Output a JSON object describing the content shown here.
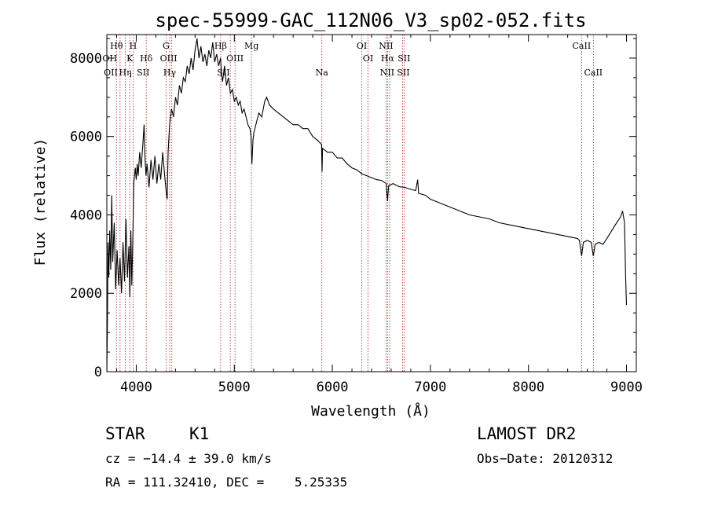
{
  "chart_data": {
    "type": "line",
    "title": "spec-55999-GAC_112N06_V3_sp02-052.fits",
    "xlabel": "Wavelength (Å)",
    "ylabel": "Flux (relative)",
    "xlim": [
      3700,
      9100
    ],
    "ylim": [
      0,
      8600
    ],
    "xticks": [
      4000,
      5000,
      6000,
      7000,
      8000,
      9000
    ],
    "yticks": [
      0,
      2000,
      4000,
      6000,
      8000
    ],
    "series": [
      {
        "color": "#000000",
        "points": [
          [
            3700,
            0
          ],
          [
            3705,
            1000
          ],
          [
            3712,
            3300
          ],
          [
            3720,
            2400
          ],
          [
            3730,
            3600
          ],
          [
            3740,
            2600
          ],
          [
            3750,
            4500
          ],
          [
            3760,
            2800
          ],
          [
            3775,
            3800
          ],
          [
            3790,
            2100
          ],
          [
            3805,
            3100
          ],
          [
            3820,
            2200
          ],
          [
            3835,
            2900
          ],
          [
            3850,
            2000
          ],
          [
            3865,
            3300
          ],
          [
            3880,
            2300
          ],
          [
            3895,
            3900
          ],
          [
            3910,
            2400
          ],
          [
            3925,
            3200
          ],
          [
            3935,
            1900
          ],
          [
            3945,
            3600
          ],
          [
            3955,
            2200
          ],
          [
            3965,
            3400
          ],
          [
            3975,
            4800
          ],
          [
            3990,
            5200
          ],
          [
            4000,
            4900
          ],
          [
            4010,
            5300
          ],
          [
            4020,
            5000
          ],
          [
            4035,
            5600
          ],
          [
            4050,
            5200
          ],
          [
            4070,
            5900
          ],
          [
            4080,
            6300
          ],
          [
            4090,
            5400
          ],
          [
            4100,
            5000
          ],
          [
            4110,
            5300
          ],
          [
            4130,
            4700
          ],
          [
            4150,
            5400
          ],
          [
            4170,
            4900
          ],
          [
            4190,
            5500
          ],
          [
            4210,
            4800
          ],
          [
            4230,
            5300
          ],
          [
            4250,
            4900
          ],
          [
            4270,
            5600
          ],
          [
            4290,
            5000
          ],
          [
            4305,
            4600
          ],
          [
            4315,
            4400
          ],
          [
            4325,
            5600
          ],
          [
            4340,
            6300
          ],
          [
            4360,
            6700
          ],
          [
            4380,
            6500
          ],
          [
            4400,
            7000
          ],
          [
            4420,
            6800
          ],
          [
            4440,
            7300
          ],
          [
            4460,
            7100
          ],
          [
            4480,
            7500
          ],
          [
            4500,
            7400
          ],
          [
            4520,
            7800
          ],
          [
            4540,
            7600
          ],
          [
            4560,
            8000
          ],
          [
            4580,
            7700
          ],
          [
            4600,
            8200
          ],
          [
            4620,
            8500
          ],
          [
            4640,
            8000
          ],
          [
            4660,
            8300
          ],
          [
            4680,
            7900
          ],
          [
            4700,
            8100
          ],
          [
            4720,
            7800
          ],
          [
            4740,
            8200
          ],
          [
            4760,
            8000
          ],
          [
            4780,
            8400
          ],
          [
            4800,
            7900
          ],
          [
            4820,
            8100
          ],
          [
            4840,
            7800
          ],
          [
            4860,
            8000
          ],
          [
            4870,
            7600
          ],
          [
            4880,
            7400
          ],
          [
            4900,
            7800
          ],
          [
            4920,
            7300
          ],
          [
            4940,
            7500
          ],
          [
            4960,
            7100
          ],
          [
            4980,
            7200
          ],
          [
            5000,
            6900
          ],
          [
            5020,
            7000
          ],
          [
            5040,
            6800
          ],
          [
            5060,
            6900
          ],
          [
            5080,
            6600
          ],
          [
            5100,
            6700
          ],
          [
            5120,
            6500
          ],
          [
            5140,
            6300
          ],
          [
            5160,
            6200
          ],
          [
            5170,
            6000
          ],
          [
            5180,
            5300
          ],
          [
            5190,
            5900
          ],
          [
            5200,
            6100
          ],
          [
            5220,
            6300
          ],
          [
            5250,
            6600
          ],
          [
            5280,
            6500
          ],
          [
            5310,
            6900
          ],
          [
            5330,
            7000
          ],
          [
            5360,
            6800
          ],
          [
            5400,
            6700
          ],
          [
            5450,
            6600
          ],
          [
            5500,
            6500
          ],
          [
            5550,
            6400
          ],
          [
            5600,
            6300
          ],
          [
            5650,
            6300
          ],
          [
            5700,
            6200
          ],
          [
            5750,
            6200
          ],
          [
            5800,
            6000
          ],
          [
            5850,
            5900
          ],
          [
            5890,
            5800
          ],
          [
            5895,
            5100
          ],
          [
            5900,
            5700
          ],
          [
            5950,
            5600
          ],
          [
            6000,
            5600
          ],
          [
            6050,
            5450
          ],
          [
            6100,
            5450
          ],
          [
            6150,
            5300
          ],
          [
            6200,
            5200
          ],
          [
            6250,
            5150
          ],
          [
            6300,
            5050
          ],
          [
            6350,
            5000
          ],
          [
            6400,
            4950
          ],
          [
            6450,
            4900
          ],
          [
            6500,
            4880
          ],
          [
            6550,
            4800
          ],
          [
            6563,
            4350
          ],
          [
            6575,
            4750
          ],
          [
            6620,
            4800
          ],
          [
            6680,
            4720
          ],
          [
            6740,
            4700
          ],
          [
            6800,
            4650
          ],
          [
            6850,
            4620
          ],
          [
            6870,
            4900
          ],
          [
            6880,
            4550
          ],
          [
            6950,
            4500
          ],
          [
            7000,
            4400
          ],
          [
            7100,
            4300
          ],
          [
            7200,
            4200
          ],
          [
            7300,
            4100
          ],
          [
            7400,
            4000
          ],
          [
            7500,
            3950
          ],
          [
            7600,
            3900
          ],
          [
            7700,
            3800
          ],
          [
            7800,
            3750
          ],
          [
            7900,
            3700
          ],
          [
            8000,
            3650
          ],
          [
            8100,
            3600
          ],
          [
            8200,
            3550
          ],
          [
            8300,
            3500
          ],
          [
            8400,
            3450
          ],
          [
            8498,
            3400
          ],
          [
            8520,
            3350
          ],
          [
            8542,
            2950
          ],
          [
            8560,
            3300
          ],
          [
            8600,
            3350
          ],
          [
            8640,
            3300
          ],
          [
            8662,
            2950
          ],
          [
            8680,
            3250
          ],
          [
            8720,
            3300
          ],
          [
            8760,
            3250
          ],
          [
            8800,
            3400
          ],
          [
            8850,
            3600
          ],
          [
            8900,
            3800
          ],
          [
            8940,
            3950
          ],
          [
            8960,
            4100
          ],
          [
            8980,
            3800
          ],
          [
            8990,
            2500
          ],
          [
            9000,
            1700
          ]
        ]
      }
    ],
    "lines": [
      {
        "wl": 3798,
        "label": "Hθ",
        "row": 1
      },
      {
        "wl": 3835,
        "label": "",
        "row": 0
      },
      {
        "wl": 3889,
        "label": "Hη",
        "row": 3
      },
      {
        "wl": 3934,
        "label": "K",
        "row": 2
      },
      {
        "wl": 3968,
        "label": "H",
        "row": 1
      },
      {
        "wl": 4102,
        "label": "Hδ",
        "row": 2
      },
      {
        "wl": 4304,
        "label": "G",
        "row": 1
      },
      {
        "wl": 4341,
        "label": "Hγ",
        "row": 3
      },
      {
        "wl": 4363,
        "label": "",
        "row": 0
      },
      {
        "wl": 4861,
        "label": "Hβ",
        "row": 1
      },
      {
        "wl": 4959,
        "label": "",
        "row": 0
      },
      {
        "wl": 5007,
        "label": "OIII",
        "row": 2
      },
      {
        "wl": 5175,
        "label": "Mg",
        "row": 1
      },
      {
        "wl": 5893,
        "label": "Na",
        "row": 3
      },
      {
        "wl": 6300,
        "label": "OI",
        "row": 1
      },
      {
        "wl": 6364,
        "label": "OI",
        "row": 2
      },
      {
        "wl": 6548,
        "label": "NII",
        "row": 1
      },
      {
        "wl": 6563,
        "label": "Hα",
        "row": 2
      },
      {
        "wl": 6584,
        "label": "",
        "row": 0
      },
      {
        "wl": 6717,
        "label": "",
        "row": 0
      },
      {
        "wl": 6731,
        "label": "SII",
        "row": 2
      },
      {
        "wl": 8542,
        "label": "CaII",
        "row": 1
      },
      {
        "wl": 8662,
        "label": "CaII",
        "row": 3
      }
    ],
    "line_labels_extra": [
      {
        "wl": 3740,
        "label": "OII",
        "row": 3
      },
      {
        "wl": 3730,
        "label": "OH",
        "row": 2
      },
      {
        "wl": 4070,
        "label": "SII",
        "row": 3
      },
      {
        "wl": 4330,
        "label": "OIII",
        "row": 2
      },
      {
        "wl": 4890,
        "label": "SII",
        "row": 3
      },
      {
        "wl": 6560,
        "label": "NII",
        "row": 3
      },
      {
        "wl": 6724,
        "label": "SII",
        "row": 3
      }
    ]
  },
  "info": {
    "class": "STAR",
    "subclass": "K1",
    "survey": "LAMOST DR2",
    "cz": "cz = −14.4 ± 39.0 km/s",
    "obsdate": "Obs−Date: 20120312",
    "radec": "RA = 111.32410, DEC =    5.25335"
  }
}
